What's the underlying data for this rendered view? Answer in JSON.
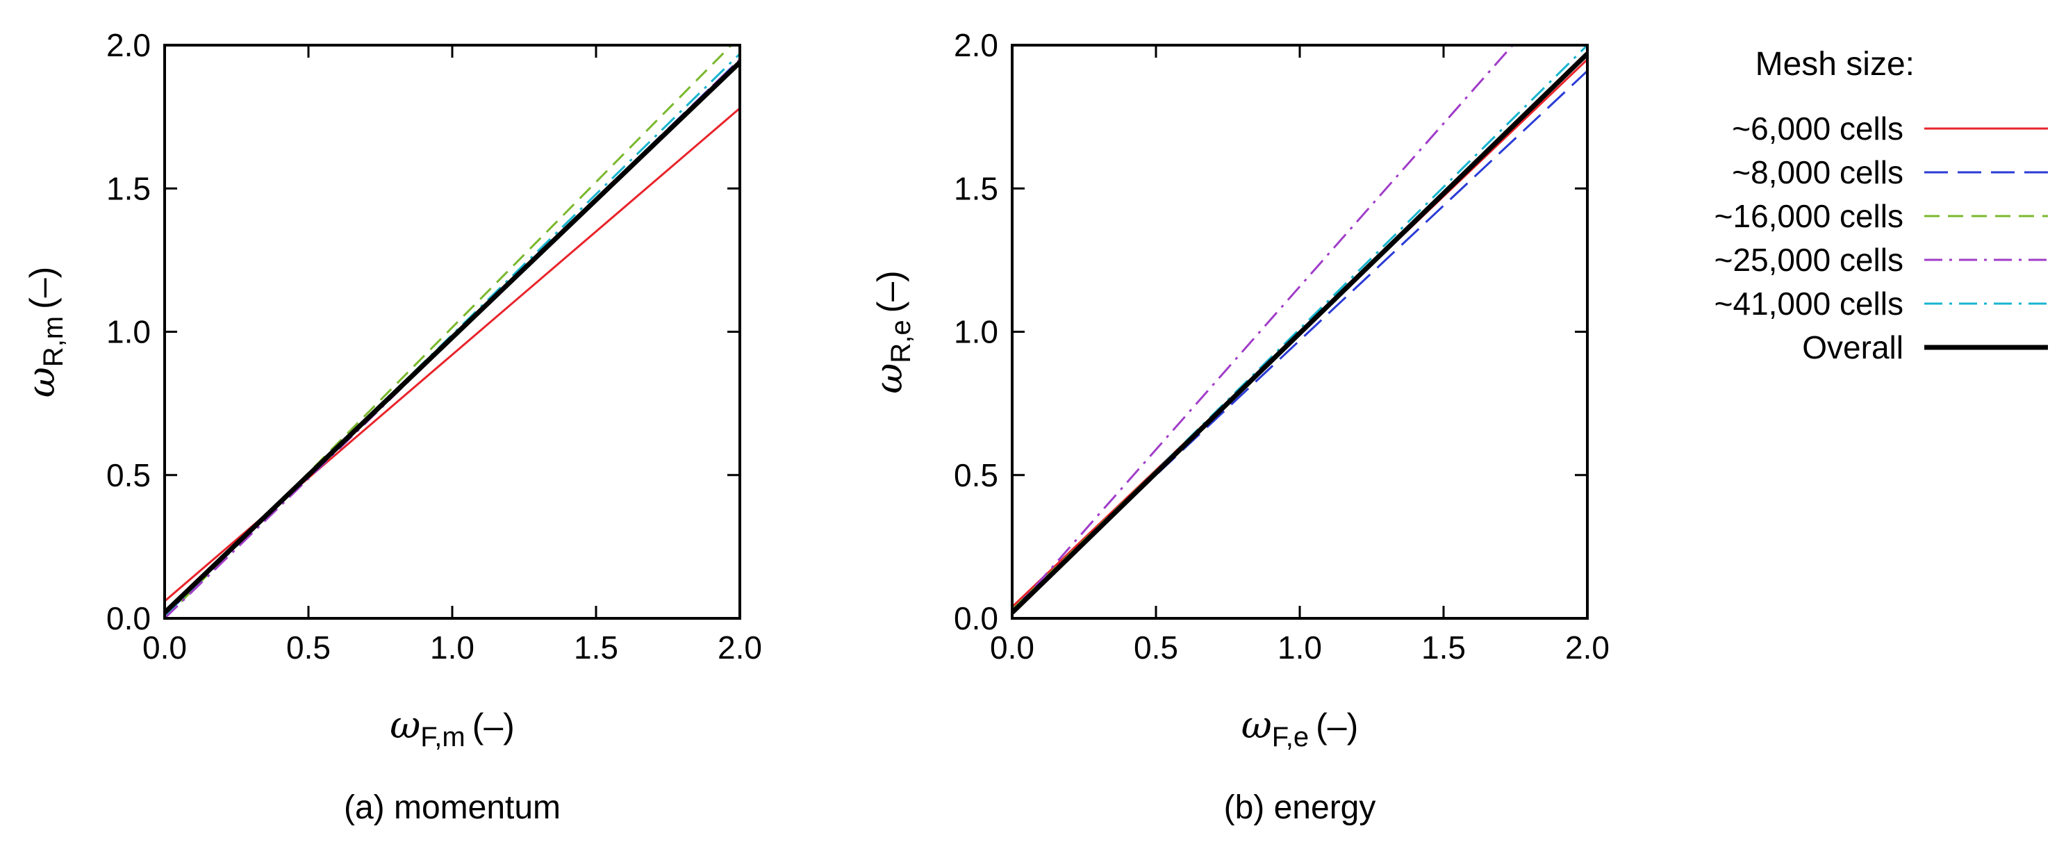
{
  "legend": {
    "title": "Mesh size:",
    "placement": "right"
  },
  "chart_data": [
    {
      "type": "line",
      "caption": "(a) momentum",
      "xlabel": {
        "symbol": "ω",
        "sub": "F,m",
        "unit": "(–)"
      },
      "ylabel": {
        "symbol": "ω",
        "sub": "R,m",
        "unit": "(–)"
      },
      "xlim": [
        0,
        2
      ],
      "ylim": [
        0,
        2
      ],
      "xticks": [
        "0.0",
        "0.5",
        "1.0",
        "1.5",
        "2.0"
      ],
      "yticks": [
        "0.0",
        "0.5",
        "1.0",
        "1.5",
        "2.0"
      ],
      "grid": false,
      "series": [
        {
          "name": "~6,000 cells",
          "color": "#e8242b",
          "dash": "solid",
          "width": 3,
          "x": [
            0,
            2
          ],
          "y": [
            0.06,
            1.78
          ]
        },
        {
          "name": "~8,000 cells",
          "color": "#2a3bd6",
          "dash": "longdash",
          "width": 3,
          "x": [
            0,
            2
          ],
          "y": [
            0.01,
            1.95
          ]
        },
        {
          "name": "~16,000 cells",
          "color": "#7ab82e",
          "dash": "dash",
          "width": 3,
          "x": [
            0,
            2
          ],
          "y": [
            0.0,
            2.03
          ]
        },
        {
          "name": "~25,000 cells",
          "color": "#a03cc8",
          "dash": "dashdot",
          "width": 3,
          "x": [
            0,
            2
          ],
          "y": [
            0.0,
            1.95
          ]
        },
        {
          "name": "~41,000 cells",
          "color": "#18b5cf",
          "dash": "dashdot",
          "width": 3,
          "x": [
            0,
            2
          ],
          "y": [
            0.01,
            1.97
          ]
        },
        {
          "name": "Overall",
          "color": "#000000",
          "dash": "solid",
          "width": 7,
          "x": [
            0,
            2
          ],
          "y": [
            0.02,
            1.94
          ]
        }
      ]
    },
    {
      "type": "line",
      "caption": "(b) energy",
      "xlabel": {
        "symbol": "ω",
        "sub": "F,e",
        "unit": "(–)"
      },
      "ylabel": {
        "symbol": "ω",
        "sub": "R,e",
        "unit": "(–)"
      },
      "xlim": [
        0,
        2
      ],
      "ylim": [
        0,
        2
      ],
      "xticks": [
        "0.0",
        "0.5",
        "1.0",
        "1.5",
        "2.0"
      ],
      "yticks": [
        "0.0",
        "0.5",
        "1.0",
        "1.5",
        "2.0"
      ],
      "grid": false,
      "series": [
        {
          "name": "~6,000 cells",
          "color": "#e8242b",
          "dash": "solid",
          "width": 3,
          "x": [
            0,
            2
          ],
          "y": [
            0.04,
            1.95
          ]
        },
        {
          "name": "~8,000 cells",
          "color": "#2a3bd6",
          "dash": "longdash",
          "width": 3,
          "x": [
            0,
            2
          ],
          "y": [
            0.03,
            1.91
          ]
        },
        {
          "name": "~16,000 cells",
          "color": "#7ab82e",
          "dash": "dash",
          "width": 3,
          "x": [
            0,
            2
          ],
          "y": [
            0.03,
            1.97
          ]
        },
        {
          "name": "~25,000 cells",
          "color": "#a03cc8",
          "dash": "dashdot",
          "width": 3,
          "x": [
            0,
            1.74
          ],
          "y": [
            0.02,
            2.0
          ]
        },
        {
          "name": "~41,000 cells",
          "color": "#18b5cf",
          "dash": "dashdot",
          "width": 3,
          "x": [
            0,
            2
          ],
          "y": [
            0.02,
            2.0
          ]
        },
        {
          "name": "Overall",
          "color": "#000000",
          "dash": "solid",
          "width": 7,
          "x": [
            0,
            2
          ],
          "y": [
            0.02,
            1.97
          ]
        }
      ]
    }
  ]
}
